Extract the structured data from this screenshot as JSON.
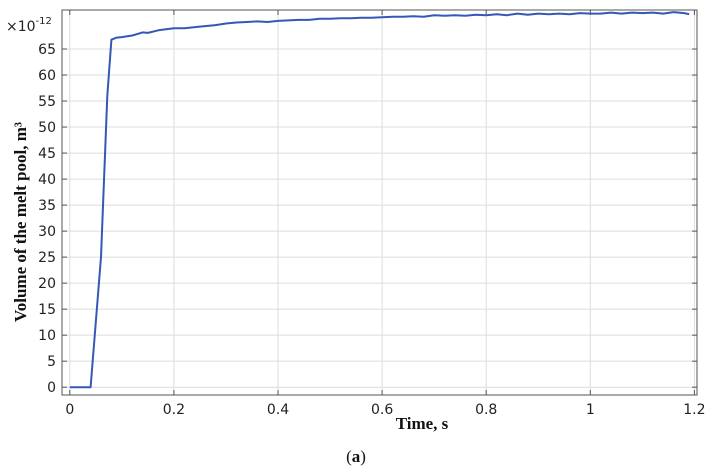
{
  "chart_data": {
    "type": "line",
    "xlabel": "Time, s",
    "ylabel": "Volume of the melt pool, m³",
    "y_multiplier": "×10",
    "y_multiplier_exponent": "-12",
    "caption": "(a)",
    "caption_letter": "a",
    "xlim": [
      -0.015,
      1.205
    ],
    "ylim": [
      -1.5,
      72.5
    ],
    "grid": true,
    "x_ticks": [
      0,
      0.2,
      0.4,
      0.6,
      0.8,
      1,
      1.2
    ],
    "x_tick_labels": [
      "0",
      "0.2",
      "0.4",
      "0.6",
      "0.8",
      "1",
      "1.2"
    ],
    "y_ticks": [
      0,
      5,
      10,
      15,
      20,
      25,
      30,
      35,
      40,
      45,
      50,
      55,
      60,
      65
    ],
    "y_tick_labels": [
      "0",
      "5",
      "10",
      "15",
      "20",
      "25",
      "30",
      "35",
      "40",
      "45",
      "50",
      "55",
      "60",
      "65"
    ],
    "series": [
      {
        "color": "#3557b7",
        "x": [
          0,
          0.04,
          0.06,
          0.072,
          0.08,
          0.09,
          0.1,
          0.12,
          0.14,
          0.15,
          0.17,
          0.2,
          0.22,
          0.25,
          0.28,
          0.3,
          0.32,
          0.34,
          0.36,
          0.38,
          0.4,
          0.42,
          0.44,
          0.46,
          0.48,
          0.5,
          0.52,
          0.54,
          0.56,
          0.58,
          0.6,
          0.62,
          0.64,
          0.66,
          0.68,
          0.7,
          0.72,
          0.74,
          0.76,
          0.78,
          0.8,
          0.82,
          0.84,
          0.86,
          0.88,
          0.9,
          0.92,
          0.94,
          0.96,
          0.98,
          1.0,
          1.02,
          1.04,
          1.06,
          1.08,
          1.1,
          1.12,
          1.14,
          1.16,
          1.18,
          1.19
        ],
        "y": [
          0,
          0,
          25,
          56,
          66.8,
          67.2,
          67.3,
          67.6,
          68.2,
          68.1,
          68.6,
          69.0,
          69.0,
          69.3,
          69.6,
          69.9,
          70.1,
          70.2,
          70.3,
          70.2,
          70.4,
          70.5,
          70.6,
          70.6,
          70.8,
          70.8,
          70.9,
          70.9,
          71.0,
          71.0,
          71.1,
          71.2,
          71.2,
          71.3,
          71.2,
          71.5,
          71.4,
          71.5,
          71.4,
          71.6,
          71.5,
          71.7,
          71.5,
          71.8,
          71.6,
          71.8,
          71.7,
          71.8,
          71.7,
          71.9,
          71.8,
          71.8,
          72.0,
          71.8,
          72.0,
          71.9,
          72.0,
          71.8,
          72.1,
          71.9,
          71.7
        ]
      }
    ]
  }
}
